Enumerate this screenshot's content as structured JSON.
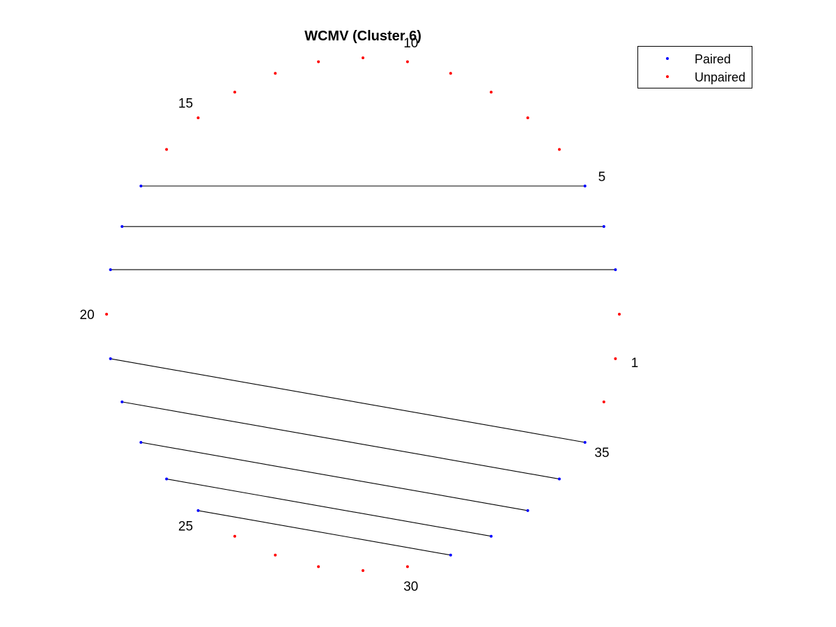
{
  "chart_data": {
    "type": "scatter",
    "subtype": "circular-arc-diagram",
    "title": "WCMV (Cluster 6)",
    "num_positions": 36,
    "start_position": 1,
    "start_angle_deg": -10,
    "direction": "counterclockwise",
    "position_labels": [
      {
        "position": 1,
        "text": "1"
      },
      {
        "position": 5,
        "text": "5"
      },
      {
        "position": 10,
        "text": "10"
      },
      {
        "position": 15,
        "text": "15"
      },
      {
        "position": 20,
        "text": "20"
      },
      {
        "position": 25,
        "text": "25"
      },
      {
        "position": 30,
        "text": "30"
      },
      {
        "position": 35,
        "text": "35"
      }
    ],
    "paired_positions": [
      3,
      4,
      5,
      17,
      18,
      19,
      21,
      22,
      23,
      24,
      25,
      31,
      32,
      33,
      34,
      35
    ],
    "pairs": [
      [
        3,
        19
      ],
      [
        4,
        18
      ],
      [
        5,
        17
      ],
      [
        21,
        35
      ],
      [
        22,
        34
      ],
      [
        23,
        33
      ],
      [
        24,
        32
      ],
      [
        25,
        31
      ]
    ],
    "series": [
      {
        "name": "Paired",
        "color": "#0000ff"
      },
      {
        "name": "Unpaired",
        "color": "#ff0000"
      }
    ],
    "link_color": "#000000",
    "legend": {
      "placement": "top-right"
    },
    "grid": false,
    "axes_visible": false
  }
}
